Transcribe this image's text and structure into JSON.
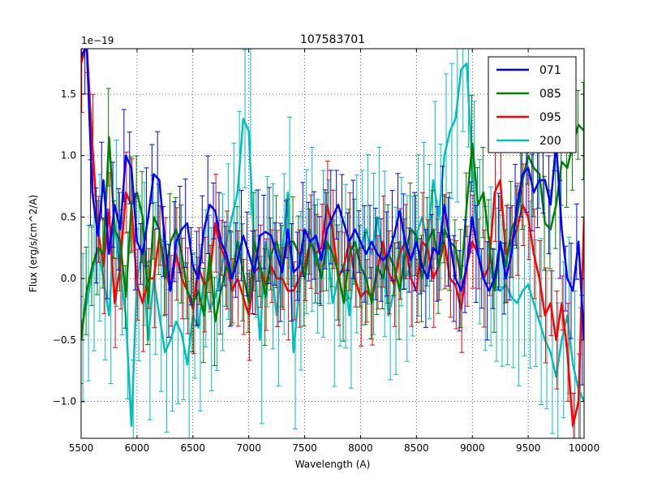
{
  "chart_data": {
    "type": "line",
    "title": "107583701",
    "xlabel": "Wavelength (A)",
    "ylabel": "Flux (erg/s/cm^2/A)",
    "offset_label": "1e−19",
    "xlim": [
      5500,
      10000
    ],
    "ylim": [
      -1.3,
      1.87
    ],
    "xticks": [
      5500,
      6000,
      6500,
      7000,
      7500,
      8000,
      8500,
      9000,
      9500,
      10000
    ],
    "yticks": [
      -1.0,
      -0.5,
      0.0,
      0.5,
      1.0,
      1.5
    ],
    "ytick_labels": [
      "−1.0",
      "−0.5",
      "0.0",
      "0.5",
      "1.0",
      "1.5"
    ],
    "grid": true,
    "legend_position": "top-right",
    "x": [
      5500,
      5550,
      5600,
      5650,
      5700,
      5750,
      5800,
      5850,
      5900,
      5950,
      6000,
      6050,
      6100,
      6150,
      6200,
      6250,
      6300,
      6350,
      6400,
      6450,
      6500,
      6550,
      6600,
      6650,
      6700,
      6750,
      6800,
      6850,
      6900,
      6950,
      7000,
      7050,
      7100,
      7150,
      7200,
      7250,
      7300,
      7350,
      7400,
      7450,
      7500,
      7550,
      7600,
      7650,
      7700,
      7750,
      7800,
      7850,
      7900,
      7950,
      8000,
      8050,
      8100,
      8150,
      8200,
      8250,
      8300,
      8350,
      8400,
      8450,
      8500,
      8550,
      8600,
      8650,
      8700,
      8750,
      8800,
      8850,
      8900,
      8950,
      9000,
      9050,
      9100,
      9150,
      9200,
      9250,
      9300,
      9350,
      9400,
      9450,
      9500,
      9550,
      9600,
      9650,
      9700,
      9750,
      9800,
      9850,
      9900,
      9950,
      10000
    ],
    "series": [
      {
        "name": "071",
        "color": "#0000ff",
        "values": [
          1.8,
          1.9,
          0.7,
          0.35,
          0.8,
          0.2,
          0.6,
          0.4,
          1.0,
          0.9,
          0.3,
          0.2,
          0.5,
          0.85,
          0.8,
          0.3,
          -0.1,
          0.3,
          0.4,
          0.45,
          0.1,
          0.0,
          0.4,
          0.6,
          0.55,
          0.3,
          0.2,
          0.0,
          0.15,
          0.35,
          0.2,
          0.05,
          0.35,
          0.38,
          0.35,
          0.2,
          0.05,
          0.4,
          0.05,
          0.1,
          0.4,
          0.3,
          0.35,
          0.15,
          0.4,
          0.5,
          0.6,
          0.45,
          0.3,
          0.4,
          0.3,
          0.2,
          0.3,
          0.2,
          0.15,
          0.2,
          0.35,
          0.55,
          0.3,
          0.15,
          0.3,
          0.1,
          0.0,
          0.25,
          0.2,
          0.6,
          0.3,
          0.0,
          -0.1,
          0.1,
          0.5,
          0.2,
          0.0,
          -0.1,
          0.0,
          0.3,
          0.0,
          0.2,
          0.6,
          0.85,
          0.9,
          0.7,
          0.8,
          0.8,
          0.6,
          1.1,
          0.4,
          0.0,
          -0.1,
          0.3,
          -0.5
        ]
      },
      {
        "name": "085",
        "color": "#008000",
        "values": [
          -0.5,
          -0.1,
          0.1,
          0.25,
          0.2,
          1.15,
          0.4,
          0.3,
          -0.15,
          0.6,
          0.7,
          0.5,
          -0.2,
          0.5,
          0.4,
          0.0,
          0.3,
          0.4,
          0.2,
          -0.1,
          -0.2,
          -0.1,
          -0.3,
          0.2,
          -0.35,
          -0.1,
          0.1,
          0.0,
          0.3,
          0.05,
          -0.2,
          0.3,
          0.1,
          -0.15,
          0.2,
          0.3,
          0.1,
          0.3,
          0.3,
          0.2,
          0.0,
          0.3,
          0.2,
          0.0,
          0.3,
          0.2,
          0.05,
          -0.2,
          0.2,
          0.3,
          0.1,
          0.0,
          -0.2,
          0.1,
          0.0,
          0.2,
          0.1,
          -0.1,
          0.2,
          0.4,
          0.35,
          0.0,
          0.3,
          0.4,
          0.1,
          0.4,
          0.3,
          0.25,
          0.0,
          0.6,
          1.1,
          0.6,
          0.7,
          0.3,
          -0.1,
          0.3,
          0.1,
          0.4,
          0.5,
          0.8,
          1.0,
          0.9,
          0.85,
          0.45,
          0.4,
          0.6,
          0.95,
          0.9,
          1.1,
          1.25,
          1.2
        ]
      },
      {
        "name": "095",
        "color": "#ff0000",
        "values": [
          1.75,
          1.9,
          1.1,
          0.4,
          0.1,
          0.55,
          -0.2,
          0.1,
          0.7,
          0.6,
          -0.05,
          -0.2,
          0.0,
          0.0,
          0.35,
          0.1,
          -0.1,
          0.2,
          0.0,
          -0.1,
          -0.25,
          0.1,
          -0.05,
          0.0,
          0.45,
          0.25,
          0.15,
          -0.1,
          0.0,
          -0.15,
          -0.3,
          0.05,
          0.1,
          -0.05,
          0.1,
          0.0,
          0.0,
          -0.1,
          -0.1,
          0.0,
          0.1,
          0.3,
          0.2,
          0.25,
          0.6,
          0.4,
          0.0,
          0.1,
          0.3,
          0.0,
          -0.15,
          -0.1,
          -0.15,
          0.05,
          0.3,
          0.05,
          -0.05,
          0.2,
          0.3,
          0.0,
          -0.1,
          0.3,
          0.25,
          0.0,
          0.1,
          0.3,
          0.0,
          -0.05,
          -0.25,
          0.1,
          0.3,
          0.2,
          0.0,
          0.1,
          0.7,
          0.8,
          0.2,
          0.3,
          0.4,
          0.6,
          0.5,
          0.2,
          0.0,
          -0.3,
          -0.2,
          -0.5,
          -0.2,
          -0.6,
          -1.2,
          -1.0,
          0.5
        ]
      },
      {
        "name": "200",
        "color": "#00bfbf",
        "values": [
          -0.4,
          -0.2,
          0.05,
          0.25,
          0.0,
          -0.3,
          0.45,
          0.05,
          -0.3,
          -1.2,
          0.0,
          0.2,
          -0.5,
          0.0,
          -0.3,
          -0.6,
          -0.5,
          -0.35,
          -0.45,
          -0.7,
          -0.3,
          -0.4,
          0.0,
          -0.25,
          -0.15,
          0.05,
          0.3,
          0.5,
          0.7,
          1.3,
          1.2,
          0.2,
          -0.5,
          0.3,
          0.1,
          -0.3,
          0.2,
          0.7,
          -0.6,
          -0.1,
          0.3,
          0.4,
          0.1,
          0.2,
          0.3,
          -0.2,
          0.0,
          0.1,
          -0.3,
          0.2,
          0.25,
          0.4,
          0.2,
          0.5,
          0.2,
          -0.3,
          -0.1,
          0.3,
          0.0,
          0.1,
          0.35,
          0.5,
          0.3,
          0.8,
          0.5,
          1.0,
          1.2,
          1.3,
          1.7,
          1.75,
          0.9,
          0.3,
          0.0,
          0.1,
          -0.05,
          -0.1,
          -0.05,
          -0.15,
          -0.2,
          -0.1,
          -0.05,
          -0.2,
          -0.35,
          -0.5,
          -0.6,
          -0.8,
          -0.5,
          -0.3,
          -0.7,
          -0.9,
          -1.0
        ]
      }
    ]
  }
}
